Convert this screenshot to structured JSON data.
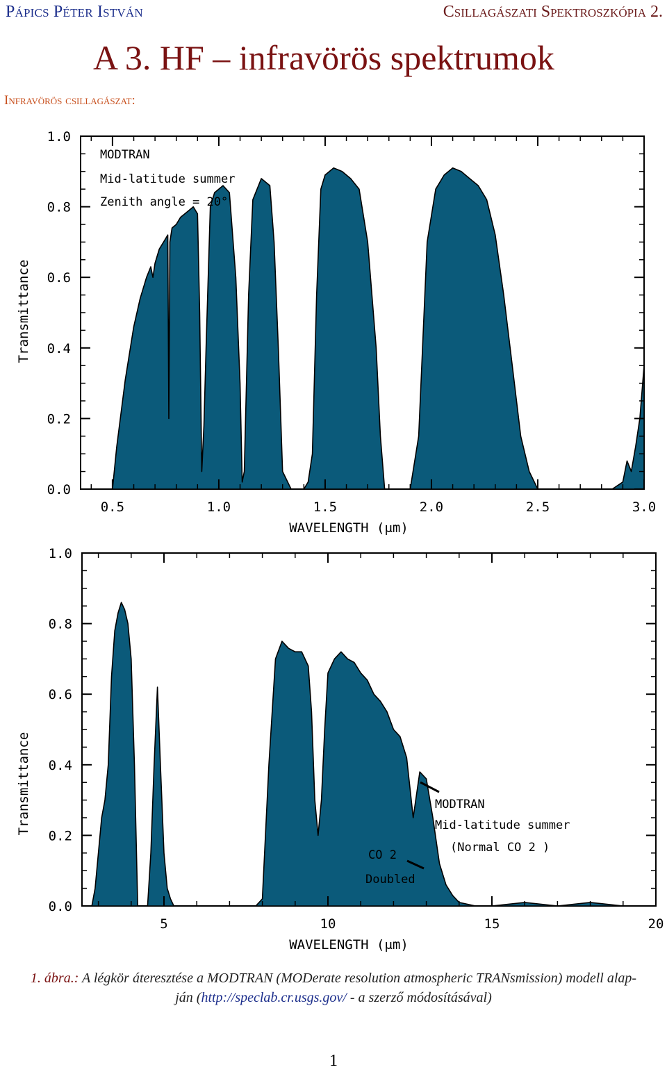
{
  "header": {
    "author": "Pápics Péter István",
    "course": "Csillagászati Spektroszkópia 2."
  },
  "title": "A 3. HF – infravörös spektrumok",
  "section_label": "Infravörös csillagászat:",
  "colors": {
    "fill": "#0b5a7a",
    "title": "#7a1212",
    "author": "#1d2f8c",
    "section": "#c8501e"
  },
  "chart_data": [
    {
      "type": "area",
      "title": "",
      "annotation": [
        "MODTRAN",
        "Mid-latitude summer",
        "Zenith angle = 20°"
      ],
      "xlabel": "WAVELENGTH (μm)",
      "ylabel": "Transmittance",
      "xlim": [
        0.35,
        3.0
      ],
      "ylim": [
        0.0,
        1.0
      ],
      "x_ticks": [
        0.5,
        1.0,
        1.5,
        2.0,
        2.5,
        3.0
      ],
      "x_tick_labels": [
        "0.5",
        "1.0",
        "1.5",
        "2.0",
        "2.5",
        "3.0"
      ],
      "y_ticks": [
        0.0,
        0.2,
        0.4,
        0.6,
        0.8,
        1.0
      ],
      "y_tick_labels": [
        "0.0",
        "0.2",
        "0.4",
        "0.6",
        "0.8",
        "1.0"
      ],
      "series": [
        {
          "name": "Transmittance",
          "x": [
            0.5,
            0.52,
            0.56,
            0.6,
            0.63,
            0.66,
            0.68,
            0.69,
            0.7,
            0.72,
            0.74,
            0.76,
            0.765,
            0.77,
            0.78,
            0.8,
            0.82,
            0.84,
            0.86,
            0.88,
            0.9,
            0.91,
            0.92,
            0.93,
            0.94,
            0.96,
            0.98,
            1.0,
            1.02,
            1.05,
            1.08,
            1.1,
            1.11,
            1.12,
            1.14,
            1.16,
            1.2,
            1.24,
            1.26,
            1.28,
            1.3,
            1.34,
            1.36,
            1.38,
            1.4,
            1.42,
            1.44,
            1.46,
            1.48,
            1.5,
            1.54,
            1.58,
            1.62,
            1.66,
            1.7,
            1.74,
            1.76,
            1.78,
            1.8,
            1.82,
            1.84,
            1.86,
            1.88,
            1.9,
            1.94,
            1.98,
            2.02,
            2.06,
            2.1,
            2.14,
            2.18,
            2.22,
            2.26,
            2.3,
            2.34,
            2.38,
            2.42,
            2.46,
            2.5,
            2.52,
            2.54,
            2.6,
            2.7,
            2.8,
            2.85,
            2.9,
            2.92,
            2.94,
            2.96,
            2.98,
            3.0
          ],
          "values": [
            0.0,
            0.12,
            0.31,
            0.46,
            0.54,
            0.6,
            0.63,
            0.6,
            0.64,
            0.68,
            0.7,
            0.72,
            0.2,
            0.7,
            0.74,
            0.75,
            0.77,
            0.78,
            0.79,
            0.8,
            0.78,
            0.5,
            0.05,
            0.18,
            0.4,
            0.8,
            0.84,
            0.85,
            0.86,
            0.84,
            0.6,
            0.3,
            0.02,
            0.05,
            0.55,
            0.82,
            0.88,
            0.86,
            0.7,
            0.4,
            0.05,
            0.0,
            0.0,
            0.0,
            0.0,
            0.02,
            0.1,
            0.55,
            0.85,
            0.89,
            0.91,
            0.9,
            0.88,
            0.85,
            0.7,
            0.4,
            0.15,
            0.0,
            0.0,
            0.0,
            0.0,
            0.0,
            0.0,
            0.0,
            0.15,
            0.7,
            0.85,
            0.89,
            0.91,
            0.9,
            0.88,
            0.86,
            0.82,
            0.72,
            0.55,
            0.35,
            0.15,
            0.05,
            0.0,
            0.0,
            0.0,
            0.0,
            0.0,
            0.0,
            0.0,
            0.02,
            0.08,
            0.05,
            0.12,
            0.2,
            0.35
          ]
        }
      ]
    },
    {
      "type": "area",
      "title": "",
      "annotation": [
        "MODTRAN",
        "Mid-latitude summer",
        "(Normal CO 2 )",
        "CO 2",
        "Doubled"
      ],
      "xlabel": "WAVELENGTH (μm)",
      "ylabel": "Transmittance",
      "xlim": [
        2.5,
        20.0
      ],
      "ylim": [
        0.0,
        1.0
      ],
      "x_ticks": [
        5,
        10,
        15,
        20
      ],
      "x_tick_labels": [
        "5",
        "10",
        "15",
        "20"
      ],
      "y_ticks": [
        0.0,
        0.2,
        0.4,
        0.6,
        0.8,
        1.0
      ],
      "y_tick_labels": [
        "0.0",
        "0.2",
        "0.4",
        "0.6",
        "0.8",
        "1.0"
      ],
      "series": [
        {
          "name": "Normal CO2",
          "x": [
            2.8,
            2.9,
            3.0,
            3.1,
            3.2,
            3.3,
            3.4,
            3.5,
            3.6,
            3.7,
            3.8,
            3.9,
            4.0,
            4.1,
            4.2,
            4.3,
            4.4,
            4.5,
            4.6,
            4.7,
            4.8,
            4.9,
            5.0,
            5.1,
            5.2,
            5.3,
            6.0,
            7.0,
            7.6,
            7.8,
            8.0,
            8.2,
            8.4,
            8.6,
            8.8,
            9.0,
            9.2,
            9.4,
            9.5,
            9.6,
            9.7,
            9.8,
            9.9,
            10.0,
            10.2,
            10.4,
            10.6,
            10.8,
            11.0,
            11.2,
            11.4,
            11.6,
            11.8,
            12.0,
            12.2,
            12.4,
            12.6,
            12.8,
            13.0,
            13.2,
            13.4,
            13.6,
            13.8,
            14.0,
            14.5,
            15.0,
            16.0,
            17.0,
            18.0,
            19.0,
            20.0
          ],
          "values": [
            0.0,
            0.05,
            0.15,
            0.25,
            0.3,
            0.4,
            0.65,
            0.78,
            0.83,
            0.86,
            0.84,
            0.8,
            0.7,
            0.4,
            0.0,
            0.0,
            0.0,
            0.0,
            0.15,
            0.4,
            0.62,
            0.38,
            0.15,
            0.05,
            0.02,
            0.0,
            0.0,
            0.0,
            0.0,
            0.0,
            0.02,
            0.4,
            0.7,
            0.75,
            0.73,
            0.72,
            0.72,
            0.68,
            0.55,
            0.3,
            0.2,
            0.3,
            0.5,
            0.66,
            0.7,
            0.72,
            0.7,
            0.69,
            0.66,
            0.64,
            0.6,
            0.58,
            0.55,
            0.5,
            0.48,
            0.42,
            0.25,
            0.38,
            0.36,
            0.25,
            0.12,
            0.06,
            0.03,
            0.01,
            0.0,
            0.0,
            0.01,
            0.0,
            0.01,
            0.0,
            0.0
          ]
        }
      ]
    }
  ],
  "caption": {
    "label": "1. ábra.:",
    "text": "A légkör áteresztése a MODTRAN (MODerate resolution atmospheric TRANsmission) modell alap-",
    "text2": "ján (",
    "link": "http://speclab.cr.usgs.gov/",
    "text3": " - a szerző módosításával)"
  },
  "page_number": "1"
}
